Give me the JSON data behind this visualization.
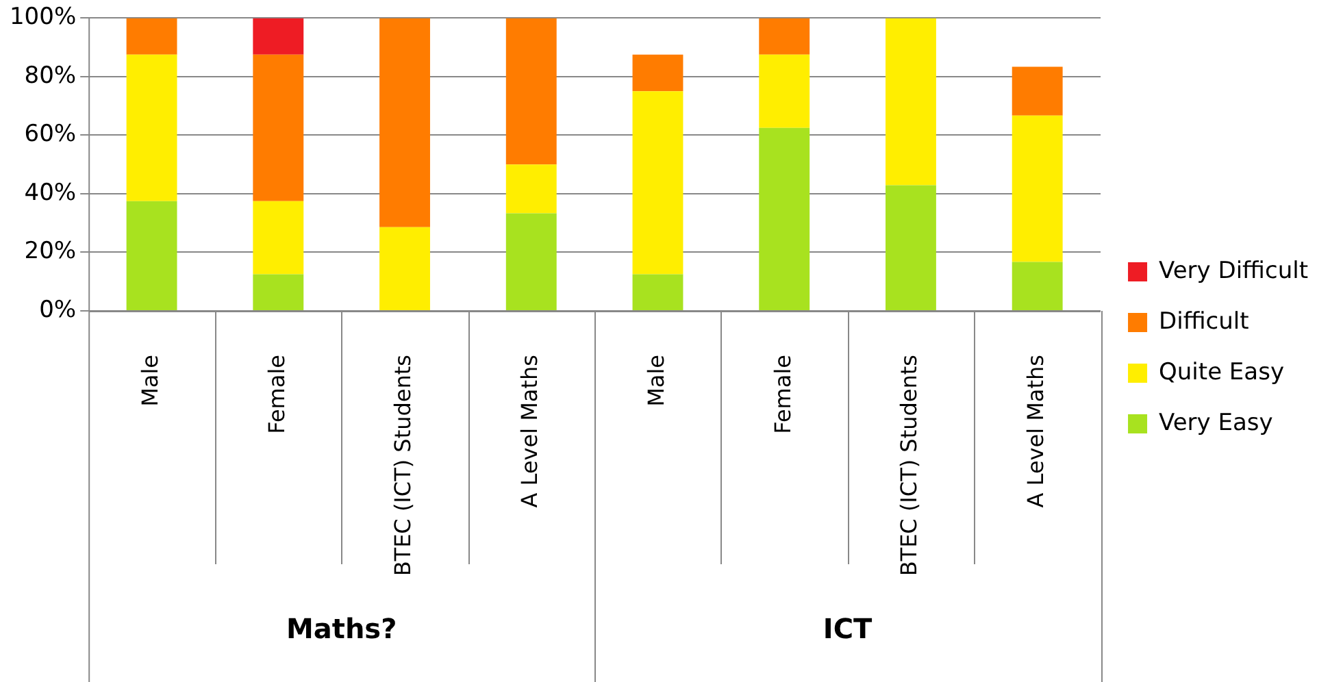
{
  "chart_data": {
    "type": "bar",
    "stacked": true,
    "categories": [
      "Male",
      "Female",
      "BTEC (ICT) Students",
      "A Level Maths",
      "Male",
      "Female",
      "BTEC (ICT) Students",
      "A Level Maths"
    ],
    "series": [
      {
        "name": "Very Easy",
        "color": "#a8e21f",
        "values": [
          37.5,
          12.5,
          0,
          33.3,
          12.5,
          62.5,
          42.9,
          16.7
        ]
      },
      {
        "name": "Quite Easy",
        "color": "#ffee00",
        "values": [
          50,
          25,
          28.6,
          16.7,
          62.5,
          25,
          57.1,
          50
        ]
      },
      {
        "name": "Difficult",
        "color": "#ff7c00",
        "values": [
          12.5,
          50,
          71.4,
          50,
          12.5,
          12.5,
          0,
          16.7
        ]
      },
      {
        "name": "Very Difficult",
        "color": "#ee1c24",
        "values": [
          0,
          12.5,
          0,
          0,
          0,
          0,
          0,
          0
        ]
      }
    ],
    "ylim": [
      0,
      100
    ],
    "yticks": [
      {
        "value": 0,
        "label": "0%"
      },
      {
        "value": 20,
        "label": "20%"
      },
      {
        "value": 40,
        "label": "40%"
      },
      {
        "value": 60,
        "label": "60%"
      },
      {
        "value": 80,
        "label": "80%"
      },
      {
        "value": 100,
        "label": "100%"
      }
    ],
    "grid": "y",
    "legend": "right",
    "annotations": [
      "Maths?",
      "ICT"
    ]
  }
}
